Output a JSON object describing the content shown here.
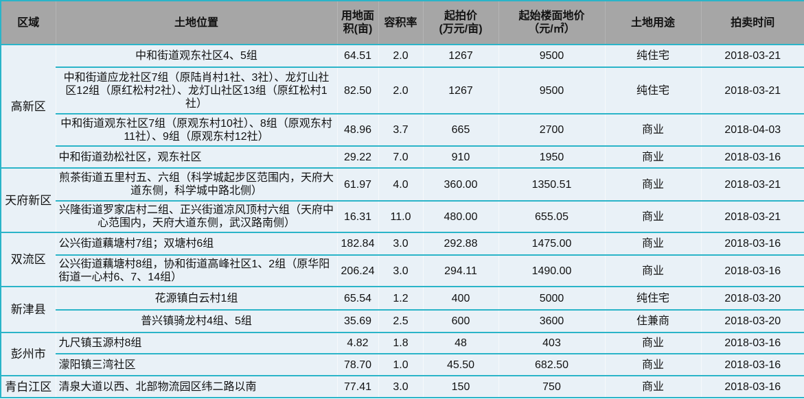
{
  "headers": [
    "区域",
    "土地位置",
    "用地面积(亩)",
    "容积率",
    "起拍价(万元/亩)",
    "起始楼面地价（元/㎡）",
    "土地用途",
    "拍卖时间"
  ],
  "header_lines": [
    [
      "区域"
    ],
    [
      "土地位置"
    ],
    [
      "用地面",
      "积(亩)"
    ],
    [
      "容积率"
    ],
    [
      "起拍价",
      "(万元/亩)"
    ],
    [
      "起始楼面地价",
      "（元/㎡）"
    ],
    [
      "土地用途"
    ],
    [
      "拍卖时间"
    ]
  ],
  "colors": {
    "header_bg": "#a6a6a6",
    "body_bg": "#e9f1f7",
    "border": "#2ab4c8"
  },
  "rows": [
    {
      "region": "高新区",
      "span": 4,
      "location": "中和街道观东社区4、5组",
      "area": "64.51",
      "far": "2.0",
      "price": "1267",
      "floor_price": "9500",
      "use": "纯住宅",
      "date": "2018-03-21",
      "align": "center"
    },
    {
      "location": "中和街道应龙社区7组（原陆肖村1社、3社）、龙灯山社区12组（原红松村2社）、龙灯山社区13组（原红松村1社）",
      "area": "82.50",
      "far": "2.0",
      "price": "1267",
      "floor_price": "9500",
      "use": "纯住宅",
      "date": "2018-03-21",
      "align": "center"
    },
    {
      "location": "中和街道观东社区7组（原观东村10社）、8组（原观东村11社）、9组（原观东村12社）",
      "area": "48.96",
      "far": "3.7",
      "price": "665",
      "floor_price": "2700",
      "use": "商业",
      "date": "2018-04-03",
      "align": "center"
    },
    {
      "location": "中和街道劲松社区，观东社区",
      "area": "29.22",
      "far": "7.0",
      "price": "910",
      "floor_price": "1950",
      "use": "商业",
      "date": "2018-03-16",
      "align": "left"
    },
    {
      "region": "天府新区",
      "span": 2,
      "location": "煎茶街道五里村五、六组（科学城起步区范围内，天府大道东侧，科学城中路北侧）",
      "area": "61.97",
      "far": "4.0",
      "price": "360.00",
      "floor_price": "1350.51",
      "use": "商业",
      "date": "2018-03-21",
      "align": "center"
    },
    {
      "location": "兴隆街道罗家店村二组、正兴街道凉风顶村六组（天府中心范围内，天府大道东侧，武汉路南侧）",
      "area": "16.31",
      "far": "11.0",
      "price": "480.00",
      "floor_price": "655.05",
      "use": "商业",
      "date": "2018-03-21",
      "align": "center"
    },
    {
      "region": "双流区",
      "span": 2,
      "location": "公兴街道藕塘村7组；双塘村6组",
      "area": "182.84",
      "far": "3.0",
      "price": "292.88",
      "floor_price": "1475.00",
      "use": "商业",
      "date": "2018-03-16",
      "align": "left"
    },
    {
      "location": "公兴街道藕塘村8组，协和街道高峰社区1、2组（原华阳街道一心村6、7、14组）",
      "area": "206.24",
      "far": "3.0",
      "price": "294.11",
      "floor_price": "1490.00",
      "use": "商业",
      "date": "2018-03-16",
      "align": "left"
    },
    {
      "region": "新津县",
      "span": 2,
      "location": "花源镇白云村1组",
      "area": "65.54",
      "far": "1.2",
      "price": "400",
      "floor_price": "5000",
      "use": "纯住宅",
      "date": "2018-03-20",
      "align": "center"
    },
    {
      "location": "普兴镇骑龙村4组、5组",
      "area": "35.69",
      "far": "2.5",
      "price": "600",
      "floor_price": "3600",
      "use": "住兼商",
      "date": "2018-03-20",
      "align": "center"
    },
    {
      "region": "彭州市",
      "span": 2,
      "location": "九尺镇玉源村8组",
      "area": "4.82",
      "far": "1.8",
      "price": "48",
      "floor_price": "403",
      "use": "商业",
      "date": "2018-03-16",
      "align": "left"
    },
    {
      "location": "濛阳镇三湾社区",
      "area": "78.70",
      "far": "1.0",
      "price": "45.50",
      "floor_price": "682.50",
      "use": "商业",
      "date": "2018-03-16",
      "align": "left"
    },
    {
      "region": "青白江区",
      "span": 1,
      "location": "清泉大道以西、北部物流园区纬二路以南",
      "area": "77.41",
      "far": "3.0",
      "price": "150",
      "floor_price": "750",
      "use": "商业",
      "date": "2018-03-16",
      "align": "left"
    }
  ]
}
